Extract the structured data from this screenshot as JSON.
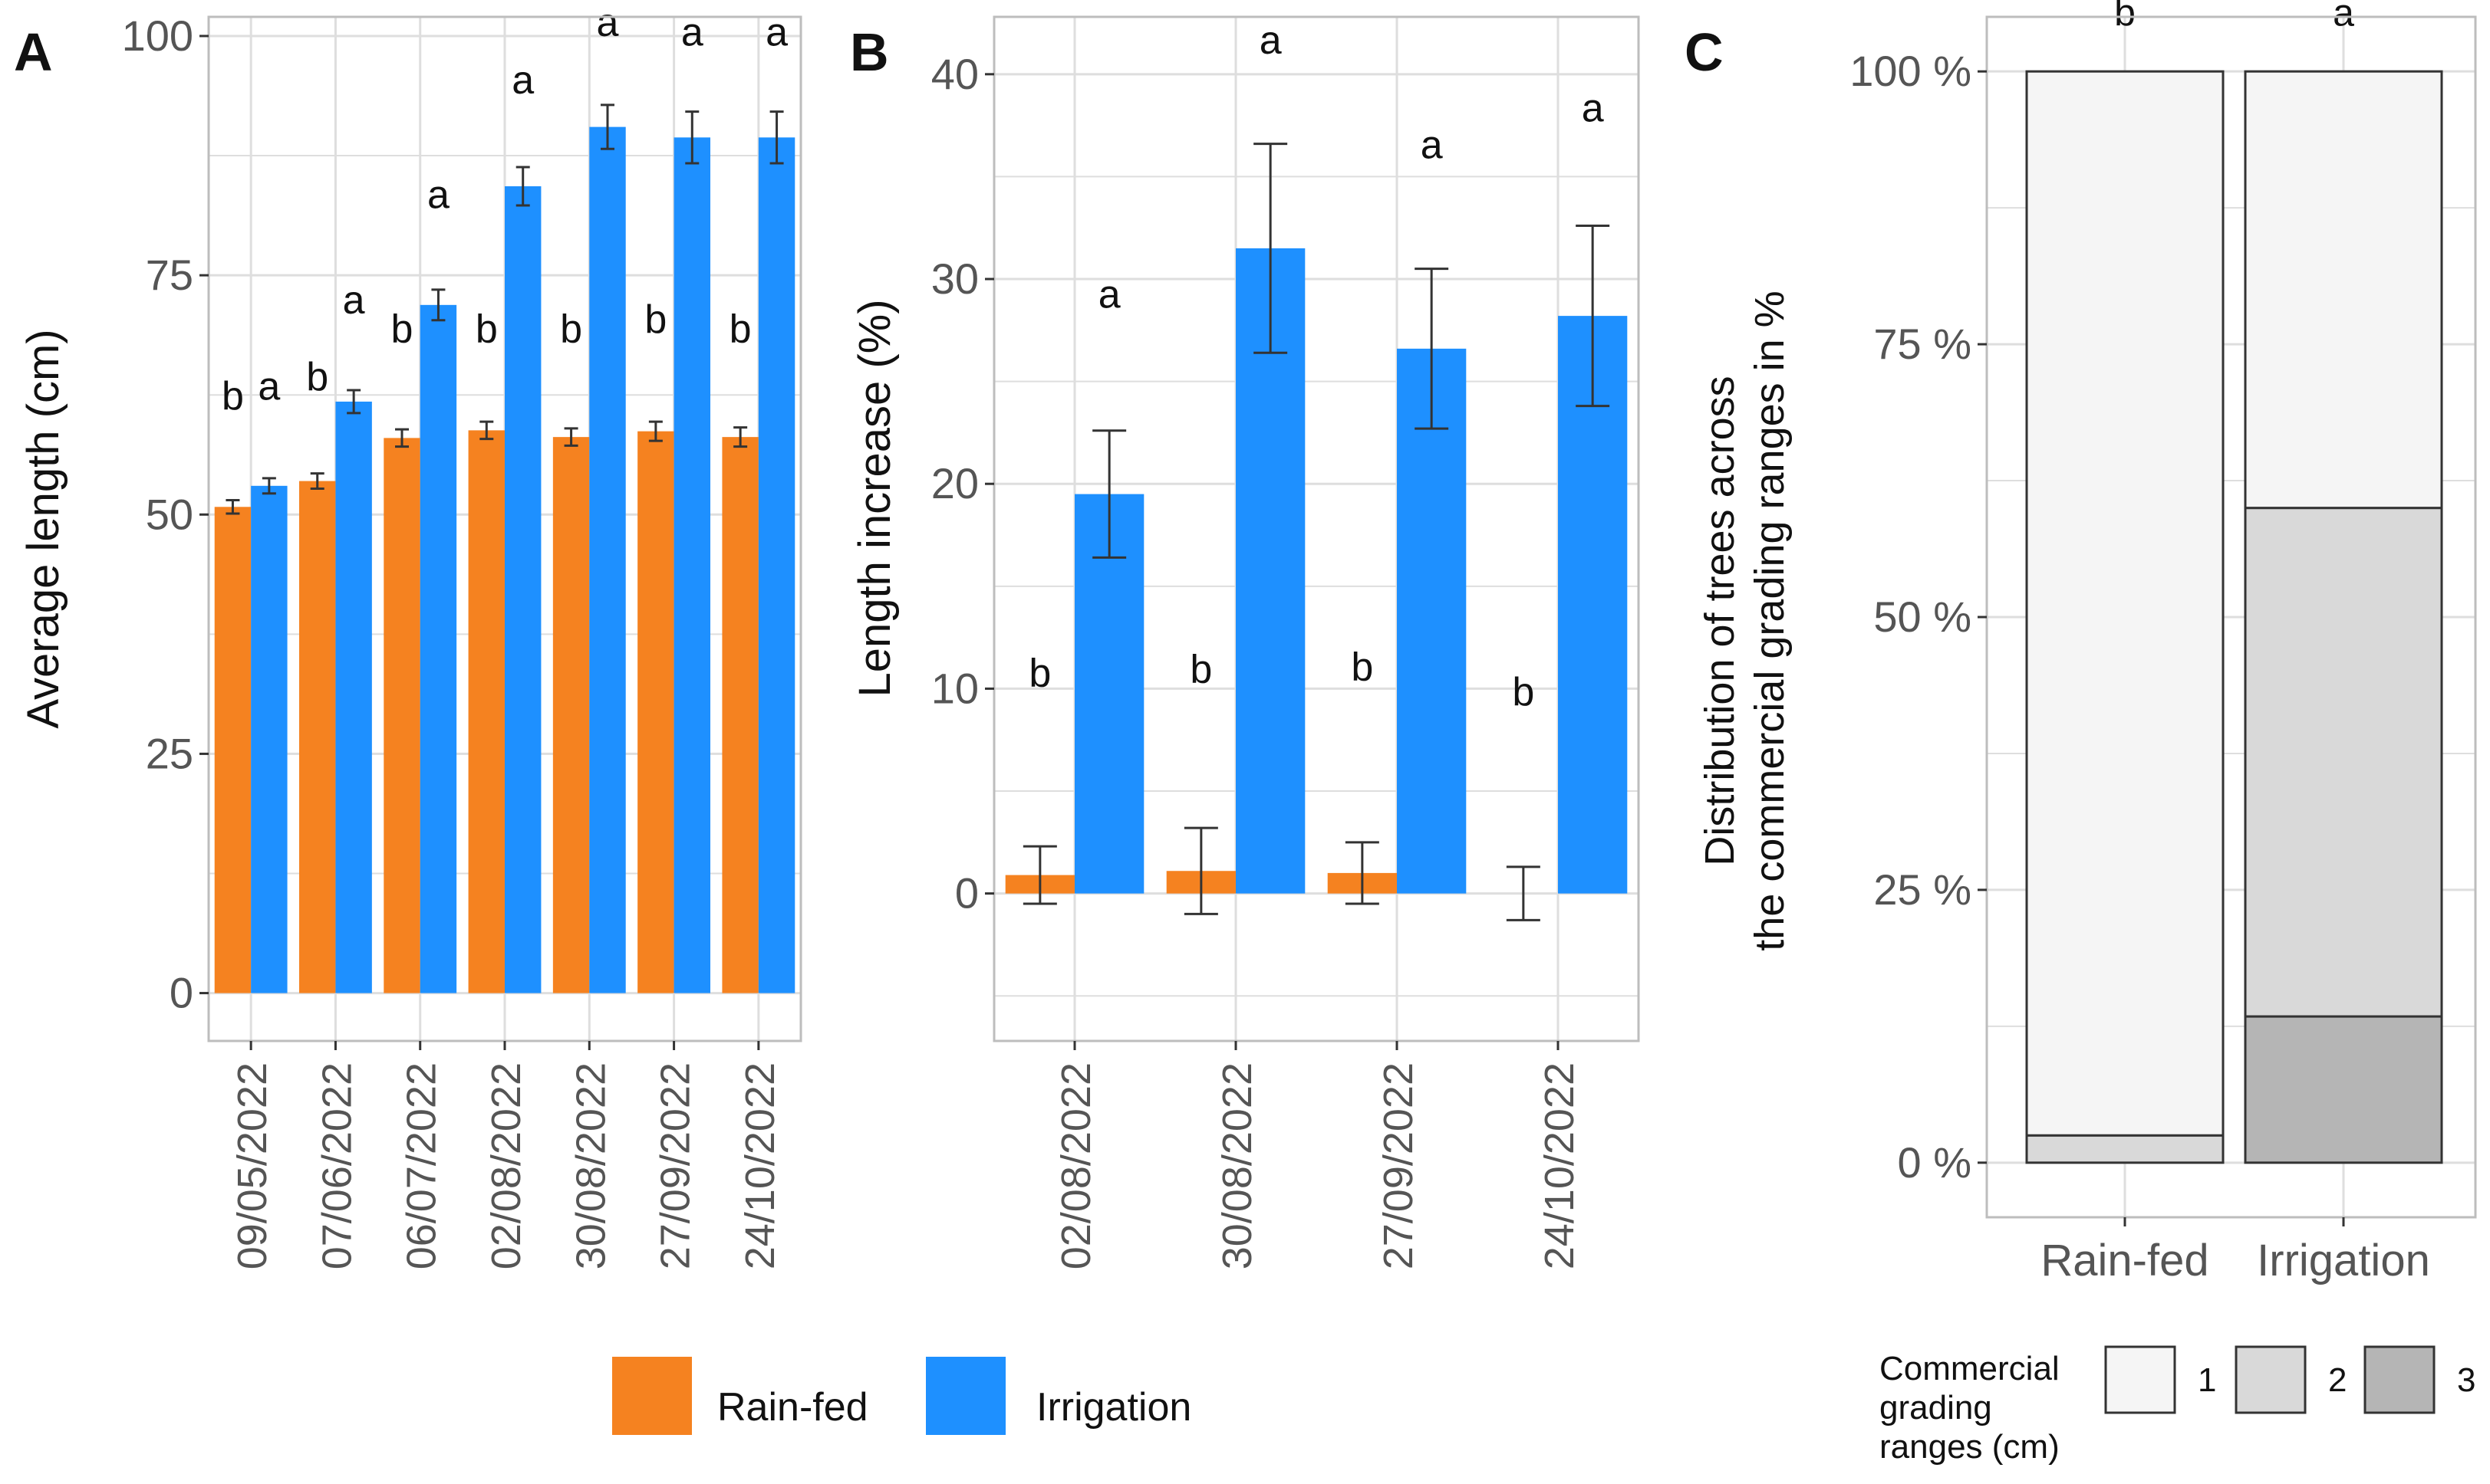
{
  "colors": {
    "rainfed": "#F58220",
    "irrigation": "#1E90FF",
    "grid": "#DEDEDE",
    "panel_border": "#BDBDBD",
    "tick_text": "#555555",
    "grade1": "#F5F5F5",
    "grade2": "#D9D9D9",
    "grade3": "#B5B5B5"
  },
  "legend": {
    "rainfed": "Rain-fed",
    "irrigation": "Irrigation"
  },
  "chart_data": [
    {
      "panel": "A",
      "type": "bar",
      "ylabel": "Average length (cm)",
      "xlabel": "",
      "ylim": [
        -5,
        102
      ],
      "yticks": [
        "0",
        "25",
        "50",
        "75",
        "100"
      ],
      "categories": [
        "09/05/2022",
        "07/06/2022",
        "06/07/2022",
        "02/08/2022",
        "30/08/2022",
        "27/09/2022",
        "24/10/2022"
      ],
      "series": [
        {
          "name": "Rain-fed",
          "values": [
            50.8,
            53.5,
            58.0,
            58.8,
            58.1,
            58.7,
            58.1
          ],
          "errors": [
            0.7,
            0.8,
            0.9,
            0.9,
            0.9,
            1.0,
            1.0
          ],
          "letters": [
            "b",
            "b",
            "b",
            "b",
            "b",
            "b",
            "b"
          ],
          "letter_y": [
            61,
            63,
            68,
            68,
            68,
            69,
            68
          ]
        },
        {
          "name": "Irrigation",
          "values": [
            53.0,
            61.8,
            71.9,
            84.3,
            90.5,
            89.4,
            89.4
          ],
          "errors": [
            0.8,
            1.2,
            1.6,
            2.0,
            2.3,
            2.7,
            2.7
          ],
          "letters": [
            "a",
            "a",
            "a",
            "a",
            "a",
            "a",
            "a"
          ],
          "letter_y": [
            62,
            71,
            82,
            94,
            100,
            99,
            99
          ]
        }
      ]
    },
    {
      "panel": "B",
      "type": "bar",
      "ylabel": "Length increase (%)",
      "xlabel": "",
      "ylim": [
        -7.2,
        42.8
      ],
      "yticks": [
        "0",
        "10",
        "20",
        "30",
        "40"
      ],
      "categories": [
        "02/08/2022",
        "30/08/2022",
        "27/09/2022",
        "24/10/2022"
      ],
      "series": [
        {
          "name": "Rain-fed",
          "values": [
            0.9,
            1.1,
            1.0,
            0.0
          ],
          "errors": [
            1.4,
            2.1,
            1.5,
            1.3
          ],
          "letters": [
            "b",
            "b",
            "b",
            "b"
          ],
          "letter_y": [
            10.1,
            10.3,
            10.4,
            9.2
          ]
        },
        {
          "name": "Irrigation",
          "values": [
            19.5,
            31.5,
            26.6,
            28.2
          ],
          "errors": [
            3.1,
            5.1,
            3.9,
            4.4
          ],
          "letters": [
            "a",
            "a",
            "a",
            "a"
          ],
          "letter_y": [
            28.6,
            41.0,
            35.9,
            37.7
          ]
        }
      ]
    },
    {
      "panel": "C",
      "type": "bar",
      "stacked": true,
      "ylabel_line1": "Distribution of trees across",
      "ylabel_line2": "the commercial grading ranges in %",
      "ylim": [
        -5,
        105
      ],
      "yticks": [
        "0 %",
        "25 %",
        "50 %",
        "75 %",
        "100 %"
      ],
      "categories": [
        "Rain-fed",
        "Irrigation"
      ],
      "letters": [
        "b",
        "a"
      ],
      "legend_title": [
        "Commercial",
        "grading",
        "ranges (cm)"
      ],
      "series": [
        {
          "name": "3",
          "values": [
            0,
            13.4
          ]
        },
        {
          "name": "2",
          "values": [
            2.5,
            46.6
          ]
        },
        {
          "name": "1",
          "values": [
            97.5,
            40.0
          ]
        }
      ]
    }
  ]
}
